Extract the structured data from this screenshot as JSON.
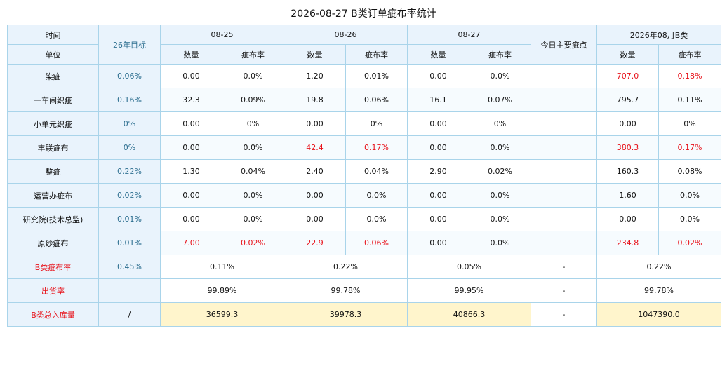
{
  "title": "2026-08-27 B类订单疵布率统计",
  "header": {
    "time_label": "时间",
    "unit_label": "单位",
    "target_label": "26年目标",
    "dates": [
      "08-25",
      "08-26",
      "08-27"
    ],
    "main_defect_label": "今日主要疵点",
    "month_label": "2026年08月B类",
    "qty_label": "数量",
    "rate_label": "疵布率"
  },
  "rows": [
    {
      "name": "染疵",
      "target": "0.06%",
      "cells": [
        {
          "q": "0.00",
          "r": "0.0%"
        },
        {
          "q": "1.20",
          "r": "0.01%"
        },
        {
          "q": "0.00",
          "r": "0.0%"
        }
      ],
      "main": "",
      "month": {
        "q": "707.0",
        "r": "0.18%"
      }
    },
    {
      "name": "一车间织疵",
      "target": "0.16%",
      "cells": [
        {
          "q": "32.3",
          "r": "0.09%"
        },
        {
          "q": "19.8",
          "r": "0.06%"
        },
        {
          "q": "16.1",
          "r": "0.07%"
        }
      ],
      "main": "",
      "month": {
        "q": "795.7",
        "r": "0.11%"
      }
    },
    {
      "name": "小单元织疵",
      "target": "0%",
      "cells": [
        {
          "q": "0.00",
          "r": "0%"
        },
        {
          "q": "0.00",
          "r": "0%"
        },
        {
          "q": "0.00",
          "r": "0%"
        }
      ],
      "main": "",
      "month": {
        "q": "0.00",
        "r": "0%"
      }
    },
    {
      "name": "丰联疵布",
      "target": "0%",
      "cells": [
        {
          "q": "0.00",
          "r": "0.0%"
        },
        {
          "q": "42.4",
          "r": "0.17%"
        },
        {
          "q": "0.00",
          "r": "0.0%"
        }
      ],
      "main": "",
      "month": {
        "q": "380.3",
        "r": "0.17%"
      }
    },
    {
      "name": "整疵",
      "target": "0.22%",
      "cells": [
        {
          "q": "1.30",
          "r": "0.04%"
        },
        {
          "q": "2.40",
          "r": "0.04%"
        },
        {
          "q": "2.90",
          "r": "0.02%"
        }
      ],
      "main": "",
      "month": {
        "q": "160.3",
        "r": "0.08%"
      }
    },
    {
      "name": "运营办疵布",
      "target": "0.02%",
      "cells": [
        {
          "q": "0.00",
          "r": "0.0%"
        },
        {
          "q": "0.00",
          "r": "0.0%"
        },
        {
          "q": "0.00",
          "r": "0.0%"
        }
      ],
      "main": "",
      "month": {
        "q": "1.60",
        "r": "0.0%"
      }
    },
    {
      "name": "研究院(技术总监)",
      "target": "0.01%",
      "cells": [
        {
          "q": "0.00",
          "r": "0.0%"
        },
        {
          "q": "0.00",
          "r": "0.0%"
        },
        {
          "q": "0.00",
          "r": "0.0%"
        }
      ],
      "main": "",
      "month": {
        "q": "0.00",
        "r": "0.0%"
      }
    },
    {
      "name": "原纱疵布",
      "target": "0.01%",
      "cells": [
        {
          "q": "7.00",
          "r": "0.02%"
        },
        {
          "q": "22.9",
          "r": "0.06%"
        },
        {
          "q": "0.00",
          "r": "0.0%"
        }
      ],
      "main": "",
      "month": {
        "q": "234.8",
        "r": "0.02%"
      }
    }
  ],
  "summary": [
    {
      "name": "B类疵布率",
      "target": "0.45%",
      "values": [
        "0.11%",
        "0.22%",
        "0.05%"
      ],
      "main": "-",
      "month": "0.22%"
    },
    {
      "name": "出货率",
      "target": "",
      "values": [
        "99.89%",
        "99.78%",
        "99.95%"
      ],
      "main": "-",
      "month": "99.78%"
    },
    {
      "name": "B类总入库量",
      "target": "/",
      "values": [
        "36599.3",
        "39978.3",
        "40866.3"
      ],
      "main": "-",
      "month": "1047390.0"
    }
  ],
  "colors": {
    "header_bg": "#e9f3fc",
    "border": "#a9d4ea",
    "highlight_red": "#e8121a",
    "target_text": "#2c6e8f",
    "total_row_bg": "#fff5cc"
  }
}
